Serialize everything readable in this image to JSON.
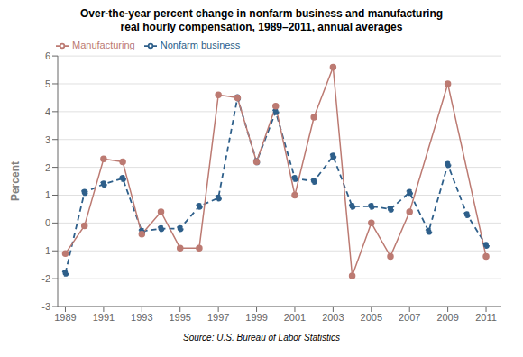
{
  "chart_data": {
    "type": "line",
    "title": "Over-the-year percent change in nonfarm business and manufacturing",
    "subtitle": "real hourly compensation, 1989–2011, annual averages",
    "ylabel": "Percent",
    "annotations": [
      "Source: U.S. Bureau of Labor Statistics"
    ],
    "series": [
      {
        "name": "Nonfarm business",
        "color": "#2E5F8A",
        "line_style": "dashed",
        "marker": "circle",
        "x": [
          1989,
          1990,
          1991,
          1992,
          1993,
          1994,
          1995,
          1996,
          1997,
          1998,
          1999,
          2000,
          2001,
          2002,
          2003,
          2004,
          2005,
          2006,
          2007,
          2008,
          2009,
          2010,
          2011
        ],
        "values": [
          -1.8,
          1.1,
          1.4,
          1.6,
          -0.3,
          -0.2,
          -0.2,
          0.6,
          0.9,
          4.5,
          2.2,
          4.0,
          1.6,
          1.5,
          2.4,
          0.6,
          0.6,
          0.5,
          1.1,
          -0.3,
          2.1,
          0.3,
          -0.8
        ]
      },
      {
        "name": "Manufacturing",
        "color": "#BC7A72",
        "line_style": "solid",
        "marker": "circle",
        "x": [
          1989,
          1990,
          1991,
          1992,
          1993,
          1994,
          1995,
          1996,
          1997,
          1998,
          1999,
          2000,
          2001,
          2002,
          2003,
          2004,
          2005,
          2006,
          2007,
          2009,
          2011
        ],
        "values": [
          -1.1,
          -0.1,
          2.3,
          2.2,
          -0.4,
          0.4,
          -0.9,
          -0.9,
          4.6,
          4.5,
          2.2,
          4.2,
          1.0,
          3.8,
          5.6,
          -1.9,
          0.0,
          -1.2,
          0.4,
          5.0,
          -1.2
        ]
      }
    ],
    "xlim": [
      1988.6,
      2011.8
    ],
    "xticks": [
      1989,
      1991,
      1993,
      1995,
      1997,
      1999,
      2001,
      2003,
      2005,
      2007,
      2009,
      2011
    ],
    "ylim": [
      -3,
      6
    ],
    "yticks": [
      -3,
      -2,
      -1,
      0,
      1,
      2,
      3,
      4,
      5,
      6
    ],
    "grid": true,
    "legend": "upper left"
  }
}
